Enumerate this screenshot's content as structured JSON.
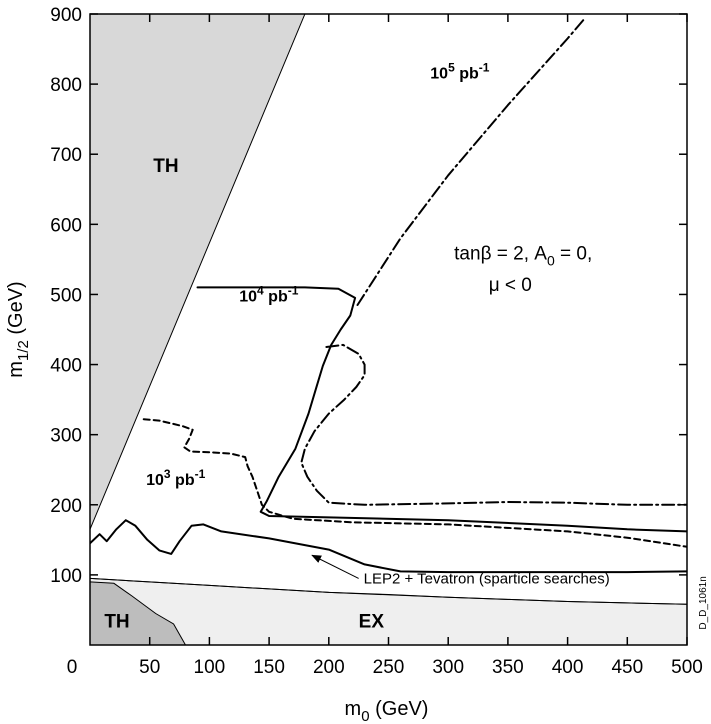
{
  "chart_data": {
    "type": "line",
    "xlabel": {
      "main": "m",
      "sub": "0",
      "unit": "(GeV)"
    },
    "ylabel": {
      "main": "m",
      "sub": "1/2",
      "unit": "(GeV)"
    },
    "xlim": [
      0,
      500
    ],
    "ylim": [
      0,
      900
    ],
    "x_ticks": [
      50,
      100,
      150,
      200,
      250,
      300,
      350,
      400,
      450,
      500
    ],
    "y_ticks": [
      100,
      200,
      300,
      400,
      500,
      600,
      700,
      800,
      900
    ],
    "origin_label": "0",
    "grid": false,
    "regions": [
      {
        "label": "TH",
        "label_pos": [
          53,
          675
        ],
        "color": "#d8d8d8",
        "points": [
          [
            0,
            165
          ],
          [
            0,
            900
          ],
          [
            180,
            900
          ]
        ]
      },
      {
        "label": "EX",
        "label_pos": [
          225,
          25
        ],
        "color": "#efefef",
        "points": [
          [
            0,
            0
          ],
          [
            0,
            95
          ],
          [
            100,
            85
          ],
          [
            200,
            75
          ],
          [
            300,
            68
          ],
          [
            400,
            62
          ],
          [
            500,
            58
          ],
          [
            500,
            0
          ]
        ]
      },
      {
        "label": "TH",
        "label_pos": [
          12,
          25
        ],
        "color": "#bdbdbd",
        "points": [
          [
            0,
            0
          ],
          [
            0,
            90
          ],
          [
            20,
            88
          ],
          [
            35,
            70
          ],
          [
            55,
            45
          ],
          [
            70,
            30
          ],
          [
            80,
            0
          ]
        ]
      }
    ],
    "series": [
      {
        "name": "10^3 pb^-1",
        "label": {
          "base": "10",
          "exp": "3",
          "unit": "pb",
          "unit_exp": "-1"
        },
        "label_pos": [
          47,
          228
        ],
        "dash": "6,4",
        "points": [
          [
            45,
            322
          ],
          [
            58,
            320
          ],
          [
            68,
            316
          ],
          [
            78,
            312
          ],
          [
            86,
            307
          ],
          [
            83,
            294
          ],
          [
            79,
            282
          ],
          [
            84,
            276
          ],
          [
            100,
            275
          ],
          [
            118,
            273
          ],
          [
            130,
            268
          ],
          [
            132,
            255
          ],
          [
            136,
            240
          ],
          [
            140,
            220
          ],
          [
            144,
            200
          ],
          [
            150,
            190
          ],
          [
            170,
            180
          ],
          [
            220,
            175
          ],
          [
            300,
            172
          ],
          [
            400,
            162
          ],
          [
            450,
            153
          ],
          [
            500,
            140
          ]
        ]
      },
      {
        "name": "10^4 pb^-1",
        "label": {
          "base": "10",
          "exp": "4",
          "unit": "pb",
          "unit_exp": "-1"
        },
        "label_pos": [
          125,
          490
        ],
        "dash": "",
        "points": [
          [
            90,
            510
          ],
          [
            130,
            510
          ],
          [
            180,
            510
          ],
          [
            208,
            508
          ],
          [
            222,
            495
          ],
          [
            218,
            470
          ],
          [
            210,
            450
          ],
          [
            202,
            428
          ],
          [
            195,
            398
          ],
          [
            190,
            370
          ],
          [
            183,
            330
          ],
          [
            172,
            280
          ],
          [
            158,
            240
          ],
          [
            148,
            205
          ],
          [
            143,
            190
          ],
          [
            150,
            184
          ],
          [
            200,
            182
          ],
          [
            300,
            178
          ],
          [
            400,
            170
          ],
          [
            450,
            165
          ],
          [
            500,
            162
          ]
        ]
      },
      {
        "name": "10^5 pb^-1",
        "label": {
          "base": "10",
          "exp": "5",
          "unit": "pb",
          "unit_exp": "-1"
        },
        "label_pos": [
          285,
          808
        ],
        "dash": "12,4,2,4",
        "points": [
          [
            224,
            485
          ],
          [
            260,
            580
          ],
          [
            300,
            670
          ],
          [
            350,
            770
          ],
          [
            400,
            865
          ],
          [
            415,
            895
          ]
        ]
      },
      {
        "name": "",
        "label": null,
        "dash": "12,4,2,4",
        "points": [
          [
            198,
            425
          ],
          [
            212,
            428
          ],
          [
            225,
            415
          ],
          [
            230,
            400
          ],
          [
            230,
            385
          ],
          [
            223,
            368
          ],
          [
            213,
            350
          ],
          [
            200,
            330
          ],
          [
            188,
            305
          ],
          [
            180,
            280
          ],
          [
            177,
            260
          ],
          [
            182,
            240
          ],
          [
            190,
            220
          ],
          [
            200,
            203
          ],
          [
            230,
            200
          ],
          [
            300,
            202
          ],
          [
            350,
            204
          ],
          [
            400,
            203
          ],
          [
            450,
            200
          ],
          [
            500,
            200
          ]
        ]
      },
      {
        "name": "LEP2 + Tevatron (sparticle searches)",
        "label": null,
        "dash": "",
        "points": [
          [
            0,
            145
          ],
          [
            8,
            158
          ],
          [
            14,
            148
          ],
          [
            22,
            165
          ],
          [
            30,
            178
          ],
          [
            38,
            170
          ],
          [
            48,
            150
          ],
          [
            58,
            135
          ],
          [
            68,
            130
          ],
          [
            75,
            148
          ],
          [
            85,
            170
          ],
          [
            95,
            172
          ],
          [
            110,
            162
          ],
          [
            150,
            152
          ],
          [
            200,
            136
          ],
          [
            230,
            115
          ],
          [
            260,
            105
          ],
          [
            300,
            104
          ],
          [
            350,
            104
          ],
          [
            400,
            104
          ],
          [
            450,
            104
          ],
          [
            500,
            105
          ]
        ]
      },
      {
        "name": "",
        "label": null,
        "dash": "",
        "stroke_width": 1,
        "points": [
          [
            0,
            95
          ],
          [
            50,
            90
          ],
          [
            100,
            85
          ],
          [
            150,
            80
          ],
          [
            200,
            75
          ],
          [
            250,
            72
          ],
          [
            300,
            68
          ],
          [
            350,
            65
          ],
          [
            400,
            62
          ],
          [
            450,
            60
          ],
          [
            500,
            58
          ]
        ]
      }
    ],
    "annotations": {
      "params_line1": "tanβ = 2, A",
      "params_line1_sub": "0",
      "params_line1_end": " = 0,",
      "params_line2": "μ < 0",
      "lep_label": "LEP2 + Tevatron (sparticle searches)",
      "lep_arrow_from": [
        225,
        95
      ],
      "lep_arrow_to": [
        186,
        128
      ],
      "tag": "D_D_1061n"
    }
  }
}
